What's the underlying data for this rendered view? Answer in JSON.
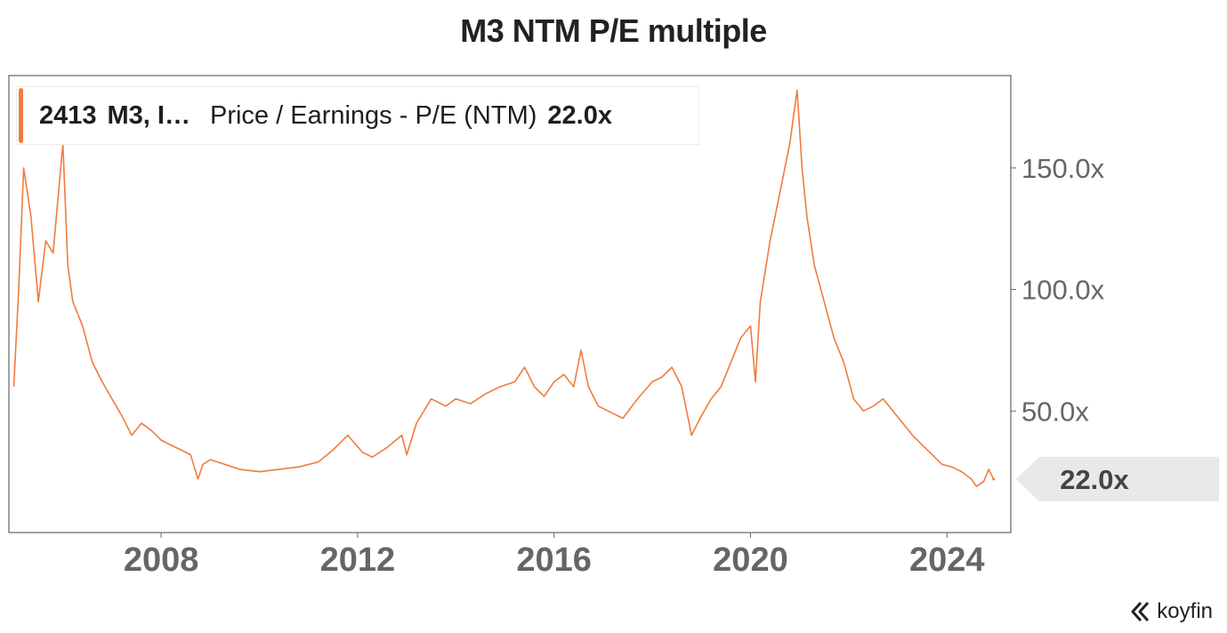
{
  "title": "M3 NTM P/E multiple",
  "legend": {
    "ticker": "2413",
    "company": "M3, I…",
    "metric": "Price / Earnings - P/E (NTM)",
    "value": "22.0x",
    "color": "#f07c3f"
  },
  "brand": "koyfin",
  "chart_data": {
    "type": "line",
    "title": "M3 NTM P/E multiple",
    "xlabel": "",
    "ylabel": "",
    "x_ticks": [
      "2008",
      "2012",
      "2016",
      "2020",
      "2024"
    ],
    "y_ticks": [
      "50.0x",
      "100.0x",
      "150.0x"
    ],
    "xlim": [
      2004.9,
      2025.3
    ],
    "ylim": [
      0,
      188
    ],
    "current_value_label": "22.0x",
    "current_value": 22.0,
    "series": [
      {
        "name": "2413 M3, I… Price / Earnings - P/E (NTM)",
        "color": "#f07c3f",
        "x": [
          2005.0,
          2005.1,
          2005.2,
          2005.35,
          2005.5,
          2005.65,
          2005.8,
          2006.0,
          2006.1,
          2006.2,
          2006.4,
          2006.6,
          2006.8,
          2007.0,
          2007.2,
          2007.4,
          2007.6,
          2007.8,
          2008.0,
          2008.2,
          2008.4,
          2008.6,
          2008.75,
          2008.85,
          2009.0,
          2009.3,
          2009.6,
          2010.0,
          2010.4,
          2010.8,
          2011.2,
          2011.5,
          2011.8,
          2012.1,
          2012.3,
          2012.6,
          2012.9,
          2013.0,
          2013.2,
          2013.5,
          2013.8,
          2014.0,
          2014.3,
          2014.6,
          2014.9,
          2015.2,
          2015.4,
          2015.6,
          2015.8,
          2016.0,
          2016.2,
          2016.4,
          2016.55,
          2016.7,
          2016.9,
          2017.1,
          2017.4,
          2017.7,
          2018.0,
          2018.2,
          2018.4,
          2018.6,
          2018.8,
          2019.0,
          2019.2,
          2019.4,
          2019.6,
          2019.8,
          2020.0,
          2020.1,
          2020.2,
          2020.4,
          2020.6,
          2020.8,
          2020.95,
          2021.05,
          2021.15,
          2021.3,
          2021.5,
          2021.7,
          2021.9,
          2022.1,
          2022.3,
          2022.5,
          2022.7,
          2022.9,
          2023.1,
          2023.3,
          2023.5,
          2023.7,
          2023.9,
          2024.1,
          2024.3,
          2024.5,
          2024.6,
          2024.75,
          2024.85,
          2024.95
        ],
        "values": [
          60,
          100,
          150,
          130,
          95,
          120,
          115,
          160,
          110,
          95,
          85,
          70,
          62,
          55,
          48,
          40,
          45,
          42,
          38,
          36,
          34,
          32,
          22,
          28,
          30,
          28,
          26,
          25,
          26,
          27,
          29,
          34,
          40,
          33,
          31,
          35,
          40,
          32,
          45,
          55,
          52,
          55,
          53,
          57,
          60,
          62,
          68,
          60,
          56,
          62,
          65,
          60,
          75,
          60,
          52,
          50,
          47,
          55,
          62,
          64,
          68,
          60,
          40,
          48,
          55,
          60,
          70,
          80,
          85,
          62,
          95,
          120,
          140,
          160,
          182,
          150,
          130,
          110,
          95,
          80,
          70,
          55,
          50,
          52,
          55,
          50,
          45,
          40,
          36,
          32,
          28,
          27,
          25,
          22,
          19,
          21,
          26,
          22
        ]
      }
    ]
  }
}
